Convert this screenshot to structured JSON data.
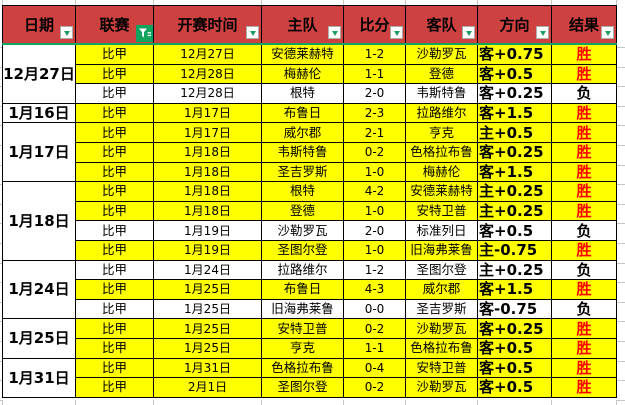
{
  "app": {
    "kind": "spreadsheet-football-results"
  },
  "colors": {
    "header_bg": "#CD4140",
    "header_text": "#000000",
    "accent_green": "#10A45F",
    "row_highlight": "#FFFF00",
    "row_plain": "#FFFFFF",
    "win_text": "#FF0000",
    "loss_text": "#000000",
    "grid_border": "#000000",
    "gridline_grey": "#C6C6C6"
  },
  "header": {
    "columns": [
      {
        "key": "date",
        "label": "日期",
        "icon": "dropdown"
      },
      {
        "key": "league",
        "label": "联赛",
        "icon": "funnel"
      },
      {
        "key": "time",
        "label": "开赛时间",
        "icon": "dropdown"
      },
      {
        "key": "home",
        "label": "主队",
        "icon": "dropdown"
      },
      {
        "key": "score",
        "label": "比分",
        "icon": "dropdown"
      },
      {
        "key": "away",
        "label": "客队",
        "icon": "dropdown"
      },
      {
        "key": "direction",
        "label": "方向",
        "icon": "dropdown"
      },
      {
        "key": "result",
        "label": "结果",
        "icon": "dropdown"
      }
    ]
  },
  "groups": [
    {
      "date": "12月27日",
      "row_count": 3
    },
    {
      "date": "1月16日",
      "row_count": 1
    },
    {
      "date": "1月17日",
      "row_count": 3
    },
    {
      "date": "1月18日",
      "row_count": 4
    },
    {
      "date": "1月24日",
      "row_count": 3
    },
    {
      "date": "1月25日",
      "row_count": 2
    },
    {
      "date": "1月31日",
      "row_count": 2
    }
  ],
  "rows": [
    {
      "league": "比甲",
      "time": "12月27日",
      "home": "安德莱赫特",
      "score": "1-2",
      "away": "沙勒罗瓦",
      "direction": "客+0.75",
      "result": "胜",
      "highlighted": true
    },
    {
      "league": "比甲",
      "time": "12月28日",
      "home": "梅赫伦",
      "score": "1-1",
      "away": "登德",
      "direction": "客+0.5",
      "result": "胜",
      "highlighted": true
    },
    {
      "league": "比甲",
      "time": "12月28日",
      "home": "根特",
      "score": "2-0",
      "away": "韦斯特鲁",
      "direction": "客+0.25",
      "result": "负",
      "highlighted": false
    },
    {
      "league": "比甲",
      "time": "1月17日",
      "home": "布鲁日",
      "score": "2-3",
      "away": "拉路维尔",
      "direction": "客+1.5",
      "result": "胜",
      "highlighted": true
    },
    {
      "league": "比甲",
      "time": "1月17日",
      "home": "威尔郡",
      "score": "2-1",
      "away": "亨克",
      "direction": "主+0.5",
      "result": "胜",
      "highlighted": true
    },
    {
      "league": "比甲",
      "time": "1月18日",
      "home": "韦斯特鲁",
      "score": "0-2",
      "away": "色格拉布鲁",
      "direction": "客+0.25",
      "result": "胜",
      "highlighted": true
    },
    {
      "league": "比甲",
      "time": "1月18日",
      "home": "圣吉罗斯",
      "score": "1-0",
      "away": "梅赫伦",
      "direction": "客+1.5",
      "result": "胜",
      "highlighted": true
    },
    {
      "league": "比甲",
      "time": "1月18日",
      "home": "根特",
      "score": "4-2",
      "away": "安德莱赫特",
      "direction": "主+0.25",
      "result": "胜",
      "highlighted": true
    },
    {
      "league": "比甲",
      "time": "1月18日",
      "home": "登德",
      "score": "1-0",
      "away": "安特卫普",
      "direction": "主+0.25",
      "result": "胜",
      "highlighted": true
    },
    {
      "league": "比甲",
      "time": "1月19日",
      "home": "沙勒罗瓦",
      "score": "2-0",
      "away": "标准列日",
      "direction": "客+0.5",
      "result": "负",
      "highlighted": false
    },
    {
      "league": "比甲",
      "time": "1月19日",
      "home": "圣图尔登",
      "score": "1-0",
      "away": "旧海弗莱鲁",
      "direction": "主-0.75",
      "result": "胜",
      "highlighted": true
    },
    {
      "league": "比甲",
      "time": "1月24日",
      "home": "拉路维尔",
      "score": "1-2",
      "away": "圣图尔登",
      "direction": "主+0.25",
      "result": "负",
      "highlighted": false
    },
    {
      "league": "比甲",
      "time": "1月25日",
      "home": "布鲁日",
      "score": "4-3",
      "away": "威尔郡",
      "direction": "客+1.5",
      "result": "胜",
      "highlighted": true
    },
    {
      "league": "比甲",
      "time": "1月25日",
      "home": "旧海弗莱鲁",
      "score": "0-0",
      "away": "圣吉罗斯",
      "direction": "客-0.75",
      "result": "负",
      "highlighted": false
    },
    {
      "league": "比甲",
      "time": "1月25日",
      "home": "安特卫普",
      "score": "0-2",
      "away": "沙勒罗瓦",
      "direction": "客+0.25",
      "result": "胜",
      "highlighted": true
    },
    {
      "league": "比甲",
      "time": "1月25日",
      "home": "亨克",
      "score": "1-1",
      "away": "色格拉布鲁",
      "direction": "客+0.5",
      "result": "胜",
      "highlighted": true
    },
    {
      "league": "比甲",
      "time": "1月31日",
      "home": "色格拉布鲁",
      "score": "0-4",
      "away": "安特卫普",
      "direction": "客+0.5",
      "result": "胜",
      "highlighted": true
    },
    {
      "league": "比甲",
      "time": "2月1日",
      "home": "圣图尔登",
      "score": "0-2",
      "away": "沙勒罗瓦",
      "direction": "客+0.5",
      "result": "胜",
      "highlighted": true
    }
  ]
}
